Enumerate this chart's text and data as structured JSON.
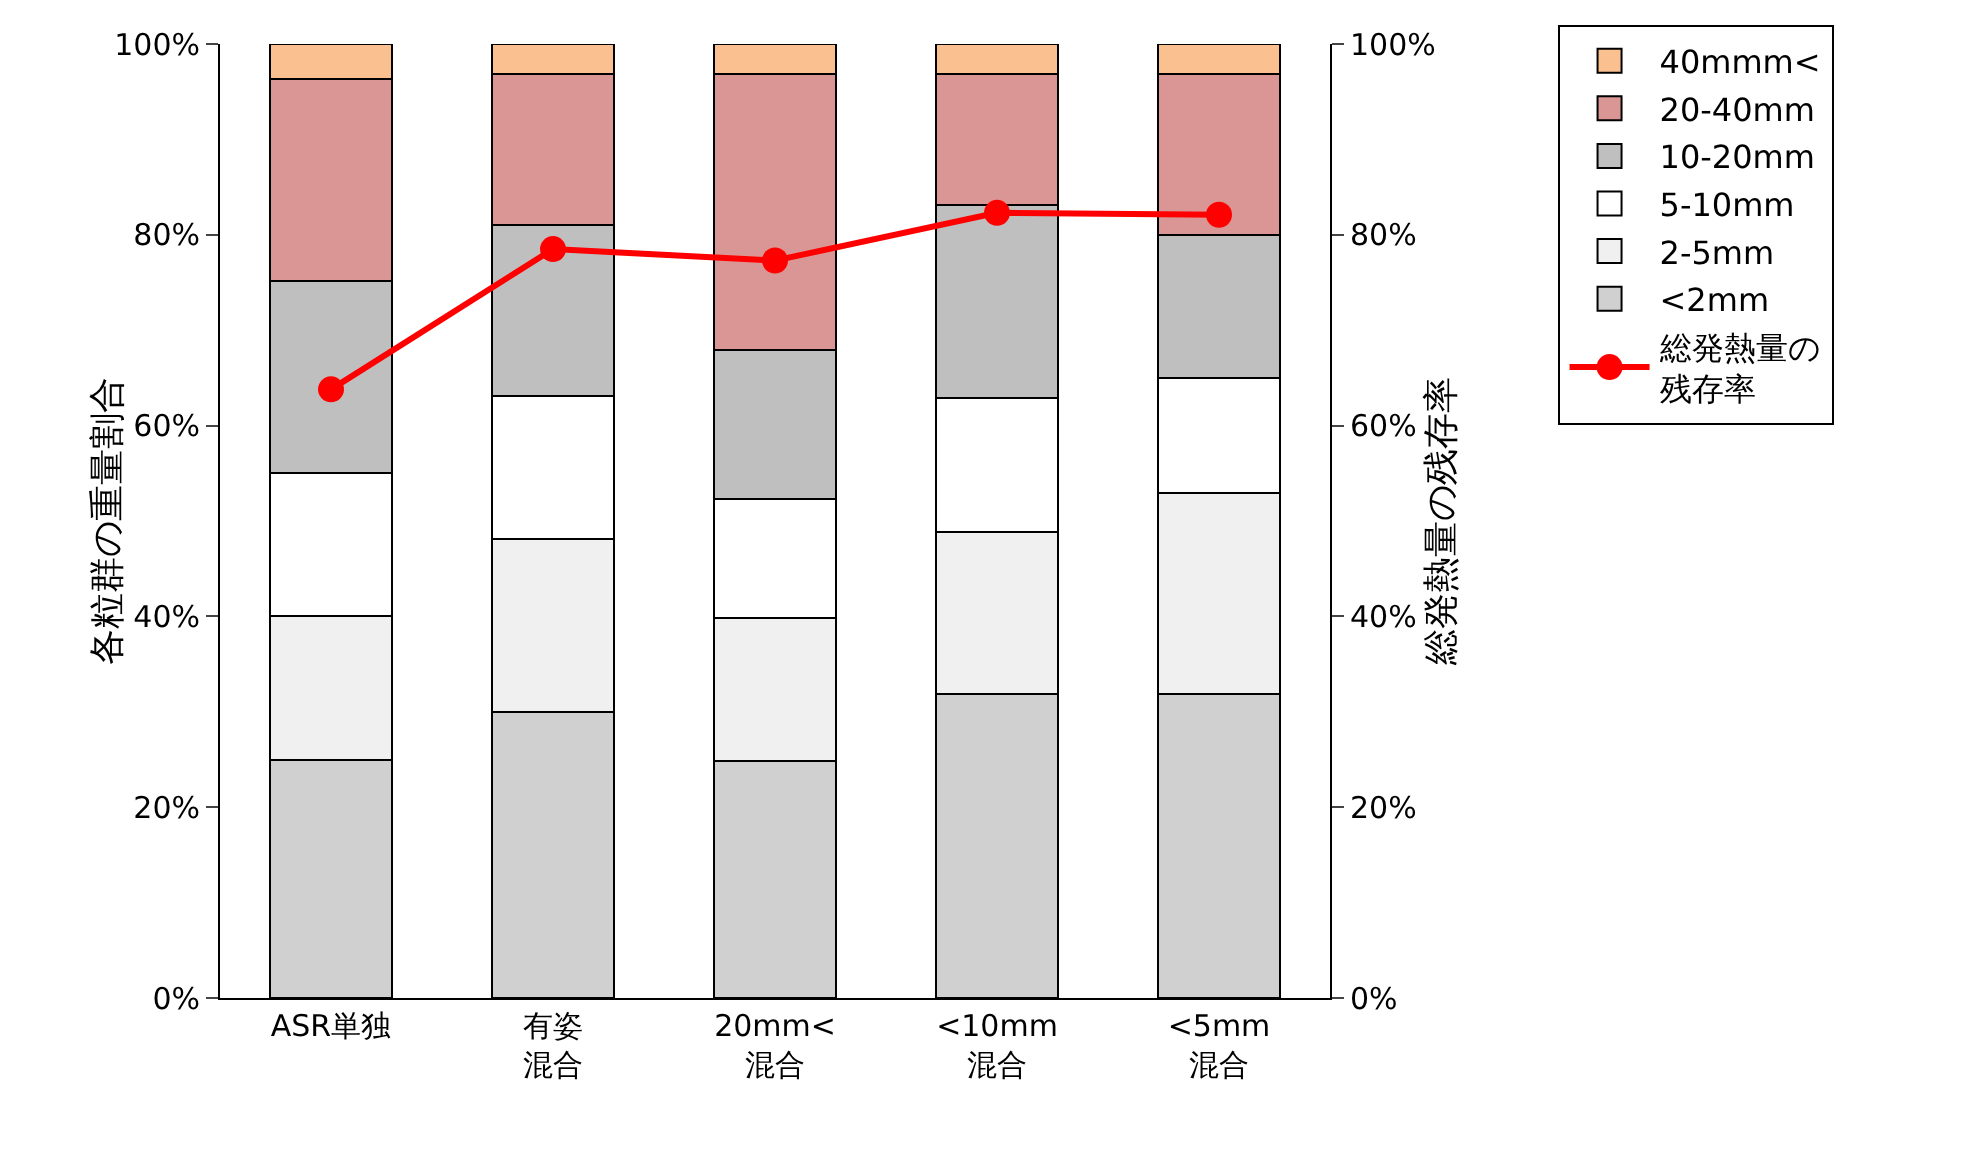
{
  "chart_data": {
    "type": "bar",
    "stacked": true,
    "categories": [
      "ASR単独",
      "有姿混合",
      "20mm<混合",
      "<10mm混合",
      "<5mm混合"
    ],
    "ylabel": "各粒群の重量割合",
    "y2label": "総発熱量の残存率",
    "ylim": [
      0,
      100
    ],
    "yticks": [
      {
        "value": 0,
        "label": "0%"
      },
      {
        "value": 20,
        "label": "20%"
      },
      {
        "value": 40,
        "label": "40%"
      },
      {
        "value": 60,
        "label": "60%"
      },
      {
        "value": 80,
        "label": "80%"
      },
      {
        "value": 100,
        "label": "100%"
      }
    ],
    "y2lim": [
      0,
      100
    ],
    "y2ticks": [
      {
        "value": 0,
        "label": "0%"
      },
      {
        "value": 20,
        "label": "20%"
      },
      {
        "value": 40,
        "label": "40%"
      },
      {
        "value": 60,
        "label": "60%"
      },
      {
        "value": 80,
        "label": "80%"
      },
      {
        "value": 100,
        "label": "100%"
      }
    ],
    "series": [
      {
        "name": "<2mm",
        "color": "#d0d0d0",
        "values": [
          25,
          30,
          24.8,
          31.9,
          31.9
        ]
      },
      {
        "name": "2-5mm",
        "color": "#f0f0f0",
        "values": [
          15,
          18.1,
          15,
          16.9,
          21
        ]
      },
      {
        "name": "5-10mm",
        "color": "#ffffff",
        "values": [
          15,
          15,
          12.5,
          14.1,
          12.1
        ]
      },
      {
        "name": "10-20mm",
        "color": "#bfbfbf",
        "values": [
          20.2,
          17.9,
          15.6,
          20.2,
          15
        ]
      },
      {
        "name": "20-40mm",
        "color": "#d99694",
        "values": [
          21.1,
          15.9,
          29,
          13.8,
          16.9
        ]
      },
      {
        "name": "40mmm<",
        "color": "#fac090",
        "values": [
          3.7,
          3.1,
          3.1,
          3.1,
          3.1
        ]
      },
      {
        "name": "総発熱量の残存率",
        "type": "line",
        "axis": "y2",
        "color": "#ff0000",
        "marker": "circle",
        "line_style": "solid",
        "values": [
          63.8,
          78.5,
          77.3,
          82.3,
          82.1
        ]
      }
    ],
    "legend": "right",
    "grid": false
  }
}
